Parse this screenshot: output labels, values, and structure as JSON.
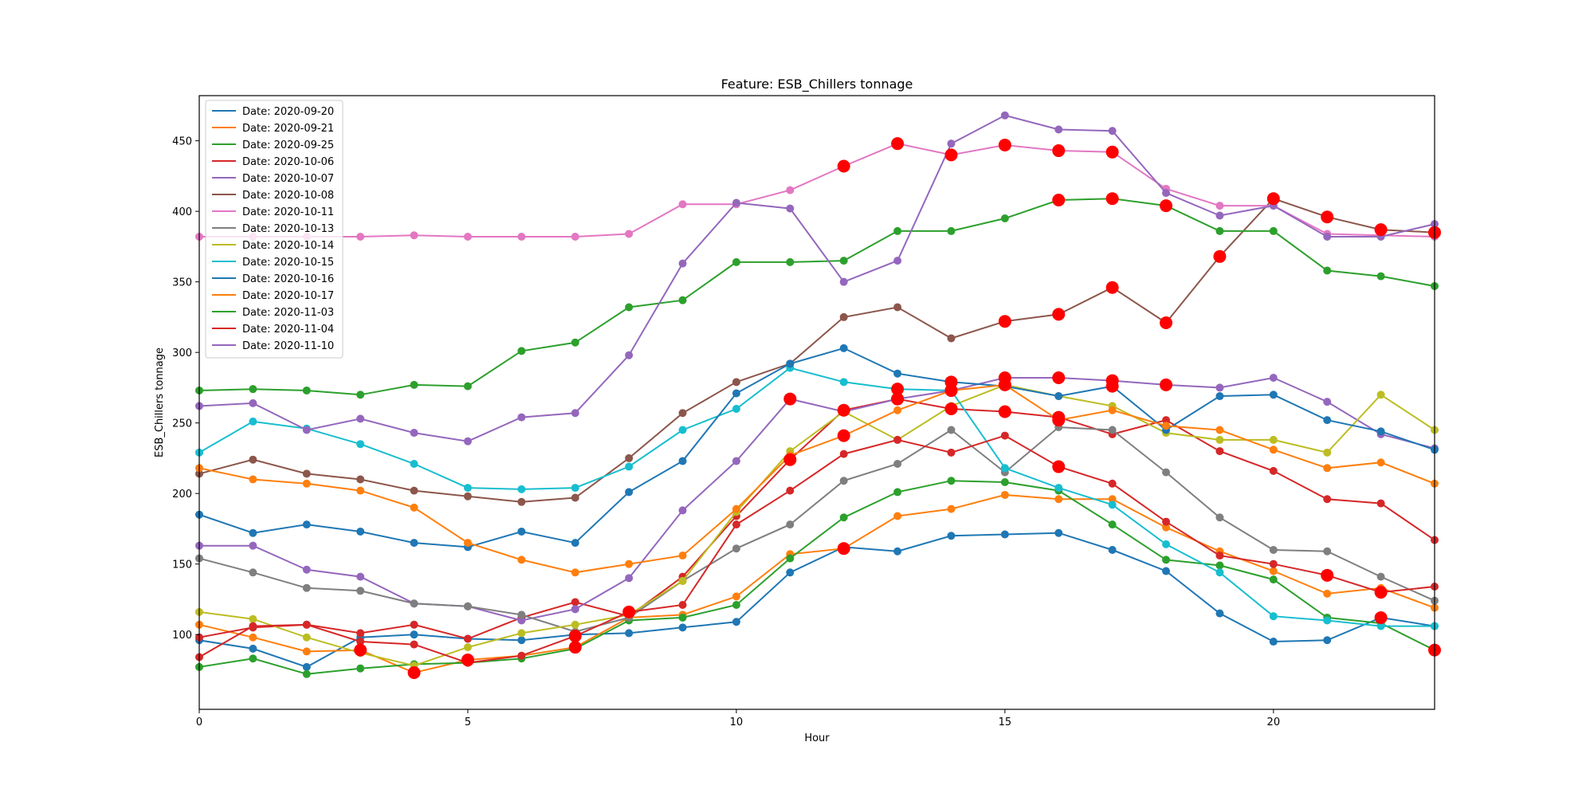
{
  "chart_data": {
    "type": "line",
    "title": "Feature: ESB_Chillers tonnage",
    "xlabel": "Hour",
    "ylabel": "ESB_Chillers tonnage",
    "xlim": [
      0,
      23
    ],
    "ylim": [
      47,
      482
    ],
    "xticks": [
      0,
      5,
      10,
      15,
      20
    ],
    "yticks": [
      100,
      150,
      200,
      250,
      300,
      350,
      400,
      450
    ],
    "grid": false,
    "legend_position": "top-left",
    "x": [
      0,
      1,
      2,
      3,
      4,
      5,
      6,
      7,
      8,
      9,
      10,
      11,
      12,
      13,
      14,
      15,
      16,
      17,
      18,
      19,
      20,
      21,
      22,
      23
    ],
    "series": [
      {
        "name": "Date: 2020-09-20",
        "color": "#1f77b4",
        "values": [
          96,
          90,
          77,
          98,
          100,
          97,
          96,
          100,
          101,
          105,
          109,
          144,
          162,
          159,
          170,
          171,
          172,
          160,
          145,
          115,
          95,
          96,
          112,
          106
        ],
        "anomalies": [
          22
        ]
      },
      {
        "name": "Date: 2020-09-21",
        "color": "#ff7f0e",
        "values": [
          107,
          98,
          88,
          89,
          73,
          82,
          85,
          91,
          112,
          114,
          127,
          157,
          161,
          184,
          189,
          199,
          196,
          196,
          176,
          159,
          145,
          129,
          133,
          119
        ],
        "anomalies": [
          3,
          4,
          5,
          7,
          12
        ]
      },
      {
        "name": "Date: 2020-09-25",
        "color": "#2ca02c",
        "values": [
          77,
          83,
          72,
          76,
          79,
          80,
          83,
          90,
          110,
          112,
          121,
          154,
          183,
          201,
          209,
          208,
          202,
          178,
          153,
          149,
          139,
          112,
          108,
          89
        ],
        "anomalies": [
          23
        ]
      },
      {
        "name": "Date: 2020-10-06",
        "color": "#d62728",
        "values": [
          98,
          105,
          107,
          101,
          107,
          97,
          112,
          123,
          113,
          141,
          184,
          224,
          259,
          267,
          260,
          258,
          254,
          242,
          252,
          230,
          216,
          196,
          193,
          167
        ],
        "anomalies": [
          11,
          12,
          13,
          14,
          15,
          16
        ]
      },
      {
        "name": "Date: 2020-10-07",
        "color": "#9467bd",
        "values": [
          163,
          163,
          146,
          141,
          122,
          120,
          110,
          118,
          140,
          188,
          223,
          267,
          258,
          267,
          273,
          282,
          282,
          280,
          277,
          275,
          282,
          265,
          242,
          232
        ],
        "anomalies": [
          11,
          13,
          14,
          15,
          16,
          17,
          18
        ]
      },
      {
        "name": "Date: 2020-10-08",
        "color": "#8c564b",
        "values": [
          214,
          224,
          214,
          210,
          202,
          198,
          194,
          197,
          225,
          257,
          279,
          292,
          325,
          332,
          310,
          322,
          327,
          346,
          321,
          368,
          409,
          396,
          387,
          385
        ],
        "anomalies": [
          15,
          16,
          17,
          18,
          19,
          20,
          21,
          22,
          23
        ]
      },
      {
        "name": "Date: 2020-10-11",
        "color": "#e377c2",
        "values": [
          382,
          382,
          382,
          382,
          383,
          382,
          382,
          382,
          384,
          405,
          405,
          415,
          432,
          448,
          440,
          447,
          443,
          442,
          416,
          404,
          404,
          384,
          383,
          382
        ],
        "anomalies": [
          12,
          13,
          14,
          15,
          16,
          17
        ]
      },
      {
        "name": "Date: 2020-10-13",
        "color": "#7f7f7f",
        "values": [
          154,
          144,
          133,
          131,
          122,
          120,
          114,
          102,
          112,
          138,
          161,
          178,
          209,
          221,
          245,
          215,
          247,
          245,
          215,
          183,
          160,
          159,
          141,
          124
        ],
        "anomalies": []
      },
      {
        "name": "Date: 2020-10-14",
        "color": "#bcbd22",
        "values": [
          116,
          111,
          98,
          87,
          78,
          91,
          101,
          107,
          114,
          138,
          187,
          230,
          258,
          238,
          262,
          277,
          269,
          262,
          243,
          238,
          238,
          229,
          270,
          245
        ],
        "anomalies": []
      },
      {
        "name": "Date: 2020-10-15",
        "color": "#17becf",
        "values": [
          229,
          251,
          246,
          235,
          221,
          204,
          203,
          204,
          219,
          245,
          260,
          289,
          279,
          274,
          273,
          218,
          204,
          192,
          164,
          144,
          113,
          110,
          106,
          106
        ],
        "anomalies": [
          13
        ]
      },
      {
        "name": "Date: 2020-10-16",
        "color": "#1f77b4",
        "values": [
          185,
          172,
          178,
          173,
          165,
          162,
          173,
          165,
          201,
          223,
          271,
          292,
          303,
          285,
          279,
          276,
          269,
          276,
          245,
          269,
          270,
          252,
          244,
          231
        ],
        "anomalies": [
          14,
          17
        ]
      },
      {
        "name": "Date: 2020-10-17",
        "color": "#ff7f0e",
        "values": [
          218,
          210,
          207,
          202,
          190,
          165,
          153,
          144,
          150,
          156,
          189,
          227,
          241,
          259,
          273,
          277,
          252,
          259,
          248,
          245,
          231,
          218,
          222,
          207
        ],
        "anomalies": [
          12,
          14,
          15,
          16
        ]
      },
      {
        "name": "Date: 2020-11-03",
        "color": "#2ca02c",
        "values": [
          273,
          274,
          273,
          270,
          277,
          276,
          301,
          307,
          332,
          337,
          364,
          364,
          365,
          386,
          386,
          395,
          408,
          409,
          404,
          386,
          386,
          358,
          354,
          347
        ],
        "anomalies": [
          16,
          17,
          18
        ]
      },
      {
        "name": "Date: 2020-11-04",
        "color": "#d62728",
        "values": [
          84,
          106,
          107,
          95,
          93,
          80,
          85,
          99,
          116,
          121,
          178,
          202,
          228,
          238,
          229,
          241,
          219,
          207,
          180,
          156,
          150,
          142,
          130,
          134
        ],
        "anomalies": [
          7,
          8,
          16,
          21,
          22
        ]
      },
      {
        "name": "Date: 2020-11-10",
        "color": "#9467bd",
        "values": [
          262,
          264,
          245,
          253,
          243,
          237,
          254,
          257,
          298,
          363,
          406,
          402,
          350,
          365,
          448,
          468,
          458,
          457,
          413,
          397,
          404,
          382,
          382,
          391
        ],
        "anomalies": []
      }
    ]
  }
}
